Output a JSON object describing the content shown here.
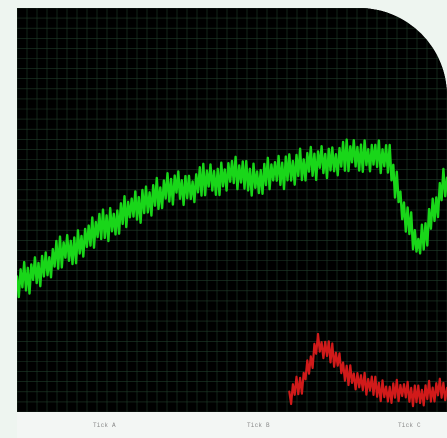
{
  "chart_data": {
    "type": "line",
    "grid": true,
    "series": [
      {
        "color": "#19d619",
        "values": [
          0.32,
          0.34,
          0.36,
          0.39,
          0.41,
          0.43,
          0.46,
          0.48,
          0.5,
          0.52,
          0.54,
          0.56,
          0.55,
          0.57,
          0.58,
          0.59,
          0.58,
          0.58,
          0.59,
          0.6,
          0.61,
          0.62,
          0.62,
          0.63,
          0.64,
          0.63,
          0.62,
          0.5,
          0.4,
          0.49,
          0.58
        ]
      },
      {
        "color": "#d11a1a",
        "values": [
          null,
          null,
          null,
          null,
          null,
          null,
          null,
          null,
          null,
          null,
          null,
          null,
          null,
          null,
          null,
          null,
          null,
          null,
          null,
          0.04,
          0.08,
          0.17,
          0.14,
          0.1,
          0.07,
          0.06,
          0.05,
          0.05,
          0.04,
          0.05,
          0.06
        ]
      }
    ],
    "ylim": [
      0,
      1
    ],
    "xlim": [
      0,
      30
    ],
    "ticks": [
      "Tick A",
      "Tick B",
      "Tick C"
    ]
  }
}
